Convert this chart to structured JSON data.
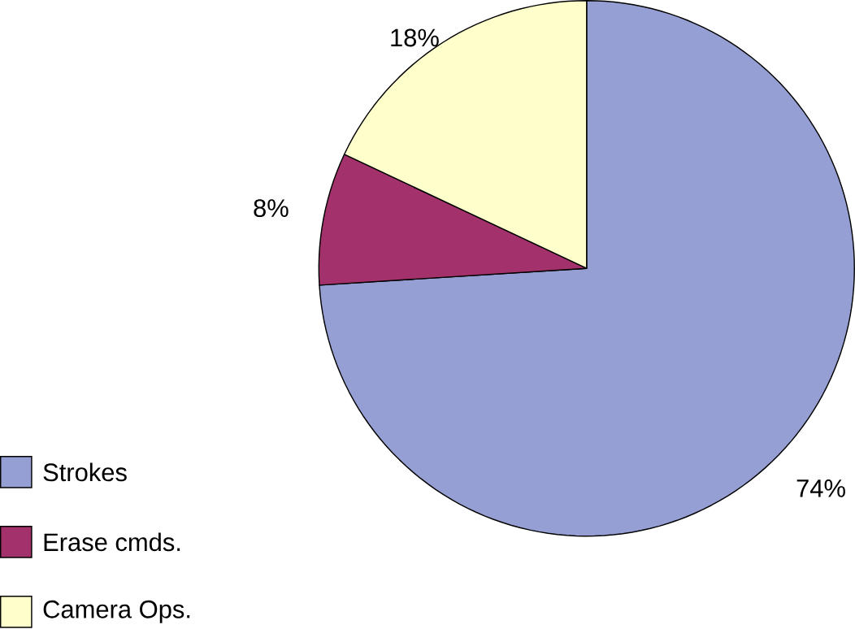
{
  "chart_data": {
    "type": "pie",
    "categories": [
      "Strokes",
      "Erase cmds.",
      "Camera Ops."
    ],
    "values": [
      74,
      8,
      18
    ],
    "colors": [
      "#959fd3",
      "#a3316b",
      "#ffffcc"
    ],
    "value_labels": [
      "74%",
      "8%",
      "18%"
    ],
    "legend": "bottom left"
  }
}
